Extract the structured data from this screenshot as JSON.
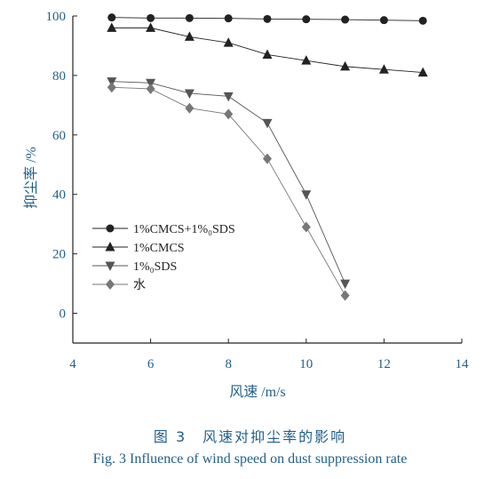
{
  "chart_data": {
    "type": "line",
    "xlabel": "风速 /m/s",
    "ylabel": "抑尘率 /%",
    "xlim": [
      4,
      14
    ],
    "ylim": [
      -10,
      100
    ],
    "xticks": [
      4,
      6,
      8,
      10,
      12,
      14
    ],
    "yticks": [
      0,
      20,
      40,
      60,
      80,
      100
    ],
    "grid": false,
    "legend_position": "lower-left",
    "series": [
      {
        "name": "1%CMCS+1%₀SDS",
        "marker": "circle",
        "color": "#222222",
        "x": [
          5,
          6,
          7,
          8,
          9,
          10,
          11,
          12,
          13
        ],
        "y": [
          99.5,
          99.3,
          99.3,
          99.2,
          99.0,
          98.9,
          98.8,
          98.6,
          98.4
        ]
      },
      {
        "name": "1%CMCS",
        "marker": "triangle-up",
        "color": "#222222",
        "x": [
          5,
          6,
          7,
          8,
          9,
          10,
          11,
          12,
          13
        ],
        "y": [
          96,
          96,
          93,
          91,
          87,
          85,
          83,
          82,
          81
        ]
      },
      {
        "name": "1%₀SDS",
        "marker": "triangle-down",
        "color": "#555555",
        "x": [
          5,
          6,
          7,
          8,
          9,
          10,
          11
        ],
        "y": [
          78,
          77.5,
          74,
          73,
          64,
          40,
          10
        ]
      },
      {
        "name": "水",
        "marker": "diamond",
        "color": "#777777",
        "x": [
          5,
          6,
          7,
          8,
          9,
          10,
          11
        ],
        "y": [
          76,
          75.5,
          69,
          67,
          52,
          29,
          6
        ]
      }
    ]
  },
  "caption": {
    "cn": "图 3　风速对抑尘率的影响",
    "en": "Fig. 3  Influence of wind speed on dust suppression rate"
  }
}
